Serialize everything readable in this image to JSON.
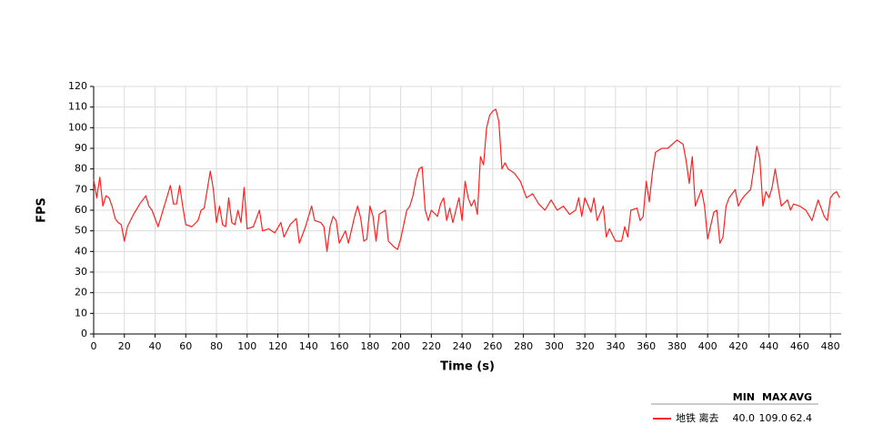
{
  "chart_data": {
    "type": "line",
    "xlabel": "Time (s)",
    "ylabel": "FPS",
    "xlim": [
      0,
      487
    ],
    "ylim": [
      0,
      120
    ],
    "xticks": [
      0,
      20,
      40,
      60,
      80,
      100,
      120,
      140,
      160,
      180,
      200,
      220,
      240,
      260,
      280,
      300,
      320,
      340,
      360,
      380,
      400,
      420,
      440,
      460,
      480
    ],
    "yticks": [
      0,
      10,
      20,
      30,
      40,
      50,
      60,
      70,
      80,
      90,
      100,
      110,
      120
    ],
    "grid": true,
    "x": [
      0,
      2,
      4,
      6,
      8,
      10,
      12,
      14,
      16,
      18,
      20,
      22,
      26,
      30,
      34,
      36,
      38,
      42,
      46,
      50,
      52,
      54,
      56,
      58,
      60,
      64,
      68,
      70,
      72,
      74,
      76,
      78,
      80,
      82,
      84,
      86,
      88,
      90,
      92,
      94,
      96,
      98,
      100,
      104,
      108,
      110,
      114,
      118,
      122,
      124,
      128,
      132,
      134,
      138,
      142,
      144,
      148,
      150,
      152,
      154,
      156,
      158,
      160,
      164,
      166,
      170,
      172,
      174,
      176,
      178,
      180,
      182,
      184,
      186,
      190,
      192,
      196,
      198,
      200,
      204,
      206,
      208,
      210,
      212,
      214,
      216,
      218,
      220,
      224,
      226,
      228,
      230,
      232,
      234,
      236,
      238,
      240,
      242,
      244,
      246,
      248,
      250,
      252,
      254,
      256,
      258,
      260,
      262,
      264,
      266,
      268,
      270,
      274,
      278,
      282,
      286,
      290,
      294,
      298,
      302,
      306,
      310,
      314,
      316,
      318,
      320,
      324,
      326,
      328,
      332,
      334,
      336,
      340,
      344,
      346,
      348,
      350,
      354,
      356,
      358,
      360,
      362,
      364,
      366,
      370,
      374,
      380,
      384,
      386,
      388,
      390,
      392,
      396,
      398,
      400,
      404,
      406,
      408,
      410,
      412,
      414,
      418,
      420,
      422,
      424,
      428,
      430,
      432,
      434,
      436,
      438,
      440,
      442,
      444,
      448,
      452,
      454,
      456,
      460,
      464,
      468,
      472,
      476,
      478,
      480,
      482,
      484,
      486
    ],
    "series": [
      {
        "name": "地铁 离去",
        "color": "#ff2020",
        "values": [
          75,
          66,
          76,
          62,
          67,
          66,
          62,
          56,
          54,
          53,
          45,
          52,
          58,
          63,
          67,
          62,
          60,
          52,
          62,
          72,
          63,
          63,
          72,
          62,
          53,
          52,
          55,
          60,
          61,
          70,
          79,
          70,
          54,
          62,
          53,
          52,
          66,
          54,
          53,
          60,
          54,
          71,
          51,
          52,
          60,
          50,
          51,
          49,
          54,
          47,
          53,
          56,
          44,
          52,
          62,
          55,
          54,
          52,
          40,
          52,
          57,
          55,
          44,
          50,
          44,
          57,
          62,
          56,
          45,
          46,
          62,
          57,
          45,
          58,
          60,
          45,
          42,
          41,
          46,
          60,
          62,
          67,
          75,
          80,
          81,
          60,
          55,
          60,
          57,
          63,
          66,
          55,
          61,
          54,
          60,
          66,
          55,
          74,
          66,
          62,
          65,
          58,
          86,
          82,
          100,
          106,
          108,
          109,
          103,
          80,
          83,
          80,
          78,
          74,
          66,
          68,
          63,
          60,
          65,
          60,
          62,
          58,
          60,
          66,
          57,
          66,
          59,
          66,
          55,
          62,
          47,
          51,
          45,
          45,
          52,
          47,
          60,
          61,
          55,
          57,
          74,
          64,
          78,
          88,
          90,
          90,
          94,
          92,
          84,
          73,
          86,
          62,
          70,
          62,
          46,
          59,
          60,
          44,
          47,
          62,
          66,
          70,
          62,
          65,
          67,
          70,
          80,
          91,
          85,
          62,
          69,
          66,
          71,
          80,
          62,
          65,
          60,
          63,
          62,
          60,
          55,
          65,
          57,
          55,
          66,
          68,
          69,
          66
        ]
      }
    ],
    "legend_stats": {
      "headers": [
        "MIN",
        "MAX",
        "AVG"
      ],
      "values": [
        "40.0",
        "109.0",
        "62.4"
      ]
    }
  }
}
